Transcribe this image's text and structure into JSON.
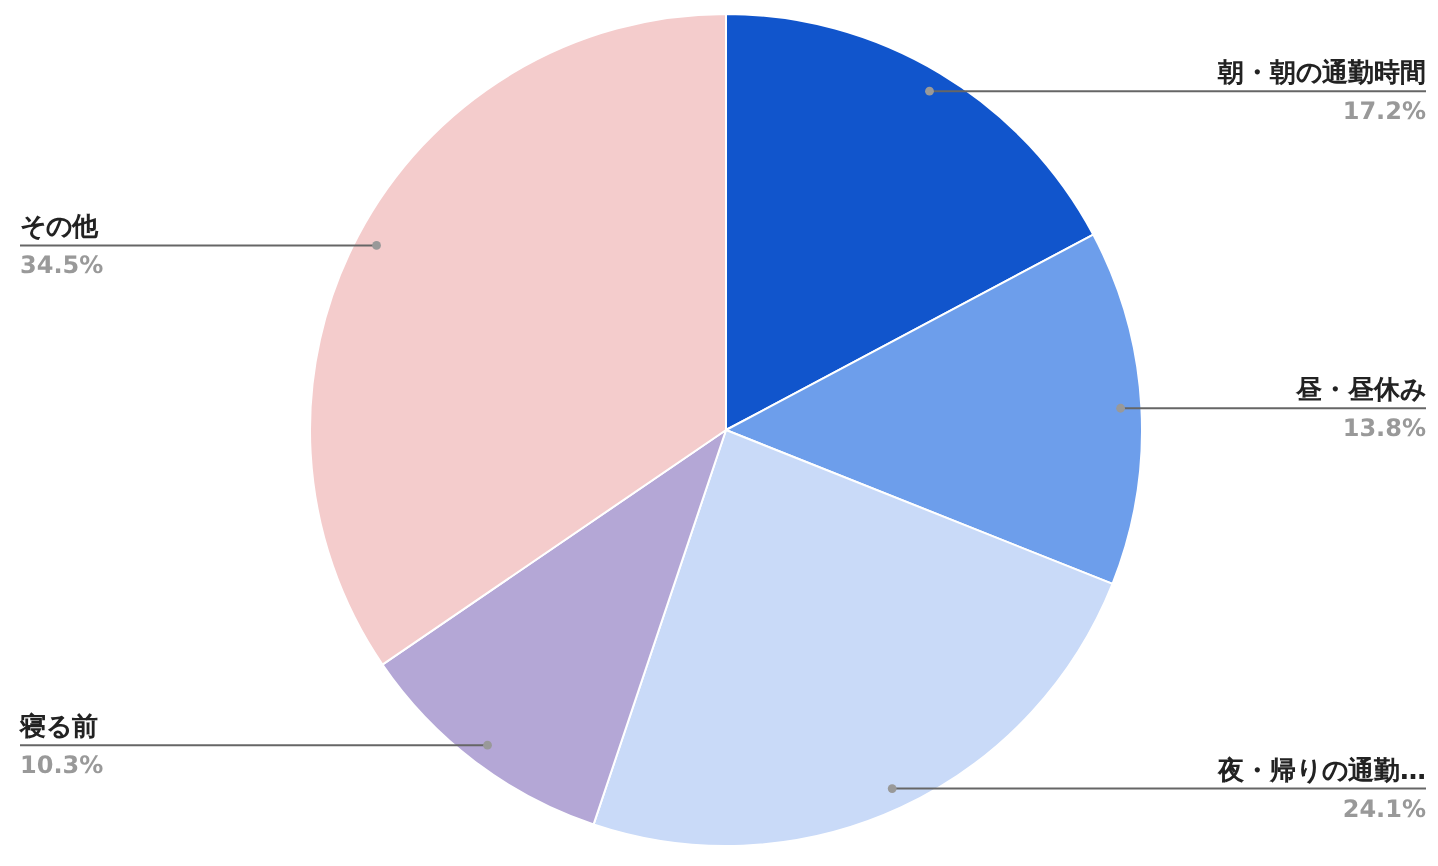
{
  "chart_data": {
    "type": "pie",
    "categories": [
      "朝・朝の通勤時間",
      "昼・昼休み",
      "夜・帰りの通勤…",
      "寝る前",
      "その他"
    ],
    "values": [
      17.2,
      13.8,
      24.1,
      10.3,
      34.5
    ],
    "colors": [
      "#1155cc",
      "#6d9eeb",
      "#c9daf8",
      "#b4a7d6",
      "#f4cccc"
    ],
    "value_labels": [
      "17.2%",
      "13.8%",
      "24.1%",
      "10.3%",
      "34.5%"
    ]
  }
}
